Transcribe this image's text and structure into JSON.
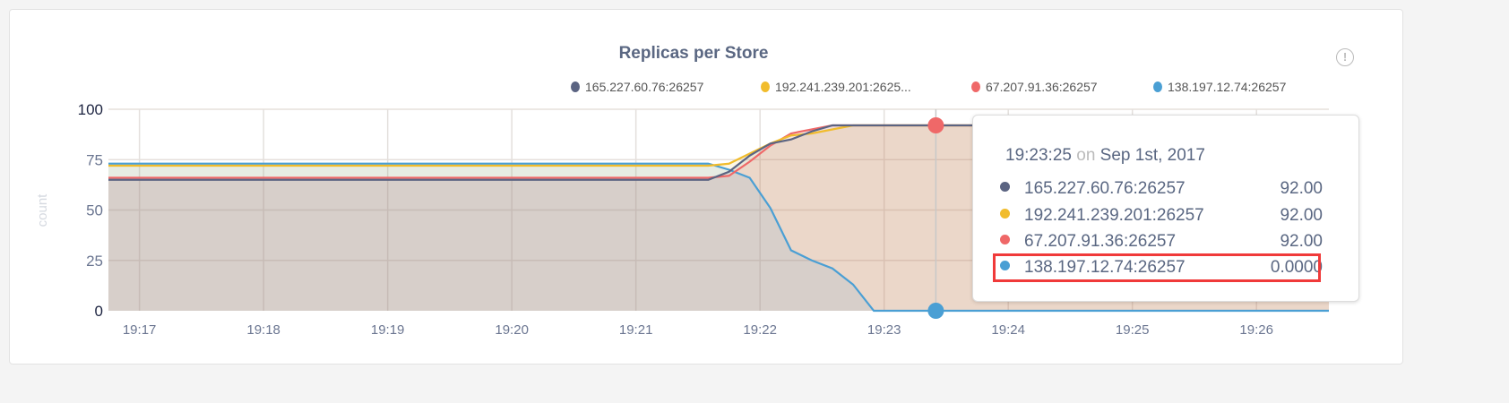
{
  "chart_data": {
    "type": "area",
    "title": "Replicas per Store",
    "xlabel": "",
    "ylabel": "count",
    "ylim": [
      0,
      100
    ],
    "xlim": [
      "19:16:45",
      "19:26:35"
    ],
    "yticks": [
      "0",
      "25",
      "50",
      "75",
      "100"
    ],
    "xticks": [
      "19:17",
      "19:18",
      "19:19",
      "19:20",
      "19:21",
      "19:22",
      "19:23",
      "19:24",
      "19:25",
      "19:26"
    ],
    "grid": true,
    "legend_placement": "top-right",
    "x": [
      "19:16:45",
      "19:21:35",
      "19:21:45",
      "19:21:55",
      "19:22:05",
      "19:22:15",
      "19:22:25",
      "19:22:35",
      "19:22:45",
      "19:22:55",
      "19:23:25",
      "19:26:35"
    ],
    "series": [
      {
        "name": "165.227.60.76:26257",
        "color": "#5b6482",
        "values": [
          65,
          65,
          69,
          77,
          83,
          85,
          89,
          92,
          92,
          92,
          92,
          92
        ]
      },
      {
        "name": "192.241.239.201:26257",
        "legend_label": "192.241.239.201:2625...",
        "color": "#f1bc2c",
        "values": [
          72,
          72,
          73,
          78,
          83,
          87,
          88,
          90,
          92,
          92,
          92,
          92
        ]
      },
      {
        "name": "67.207.91.36:26257",
        "color": "#ef6868",
        "values": [
          66,
          66,
          67,
          74,
          82,
          88,
          90,
          92,
          92,
          92,
          92,
          92
        ]
      },
      {
        "name": "138.197.12.74:26257",
        "color": "#4a9fd4",
        "values": [
          73,
          73,
          70,
          66,
          51,
          30,
          25,
          21,
          13,
          0,
          0,
          0
        ]
      }
    ]
  },
  "tooltip": {
    "time": "19:23:25",
    "on": "on",
    "date": "Sep 1st, 2017",
    "rows": [
      {
        "name": "165.227.60.76:26257",
        "value": "92.00"
      },
      {
        "name": "192.241.239.201:26257",
        "value": "92.00"
      },
      {
        "name": "67.207.91.36:26257",
        "value": "92.00"
      },
      {
        "name": "138.197.12.74:26257",
        "value": "0.0000"
      }
    ],
    "highlighted_row": 3
  },
  "info_icon": "exclamation-circle-icon",
  "info_glyph": "!"
}
